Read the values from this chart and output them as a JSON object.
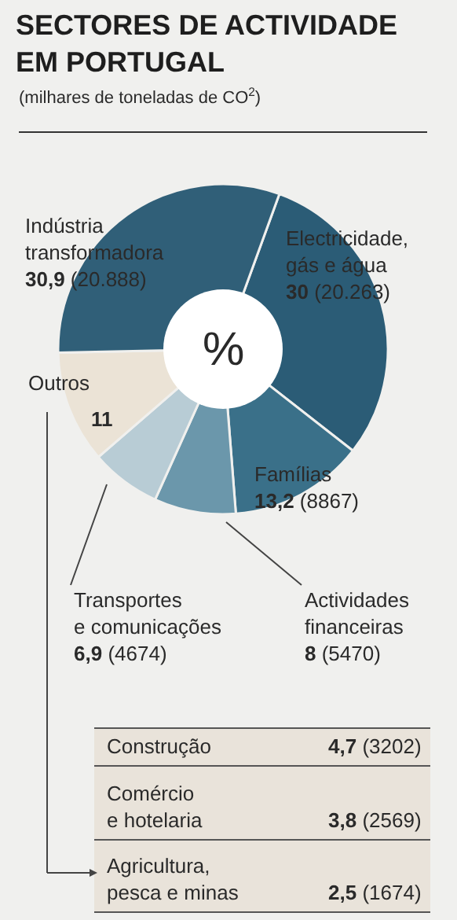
{
  "chart_data": [
    {
      "type": "donut",
      "title": "SECTORES DE ACTIVIDADE\nEM PORTUGAL",
      "subtitle": "(milhares de toneladas de CO$^{2}$)",
      "categories": [
        "Electricidade,\ngás e água",
        "Famílias",
        "Actividades\nfinanceiras",
        "Transportes\ne comunicações",
        "Outros",
        "Indústria\ntransformadora"
      ],
      "values": [
        30,
        13.2,
        8,
        6.9,
        11,
        30.9
      ],
      "value_labels": [
        "30 (20.263)",
        "13,2 (8867)",
        "8 (5470)",
        "6,9 (4674)",
        "11",
        "30,9 (20.888)"
      ],
      "colors": [
        "#2b5c76",
        "#3a7089",
        "#6b97ab",
        "#b8ccd5",
        "#ebe3d6",
        "#305f78"
      ],
      "annotations": [
        "%"
      ]
    },
    {
      "type": "other",
      "categories": [
        "Construção",
        "Comércio\ne hotelaria",
        "Agricultura,\npesca e minas"
      ],
      "values": [
        4.7,
        3.8,
        2.5
      ],
      "value_labels": [
        "4,7 (3202)",
        "3,8 (2569)",
        "2,5 (1674)"
      ]
    }
  ]
}
